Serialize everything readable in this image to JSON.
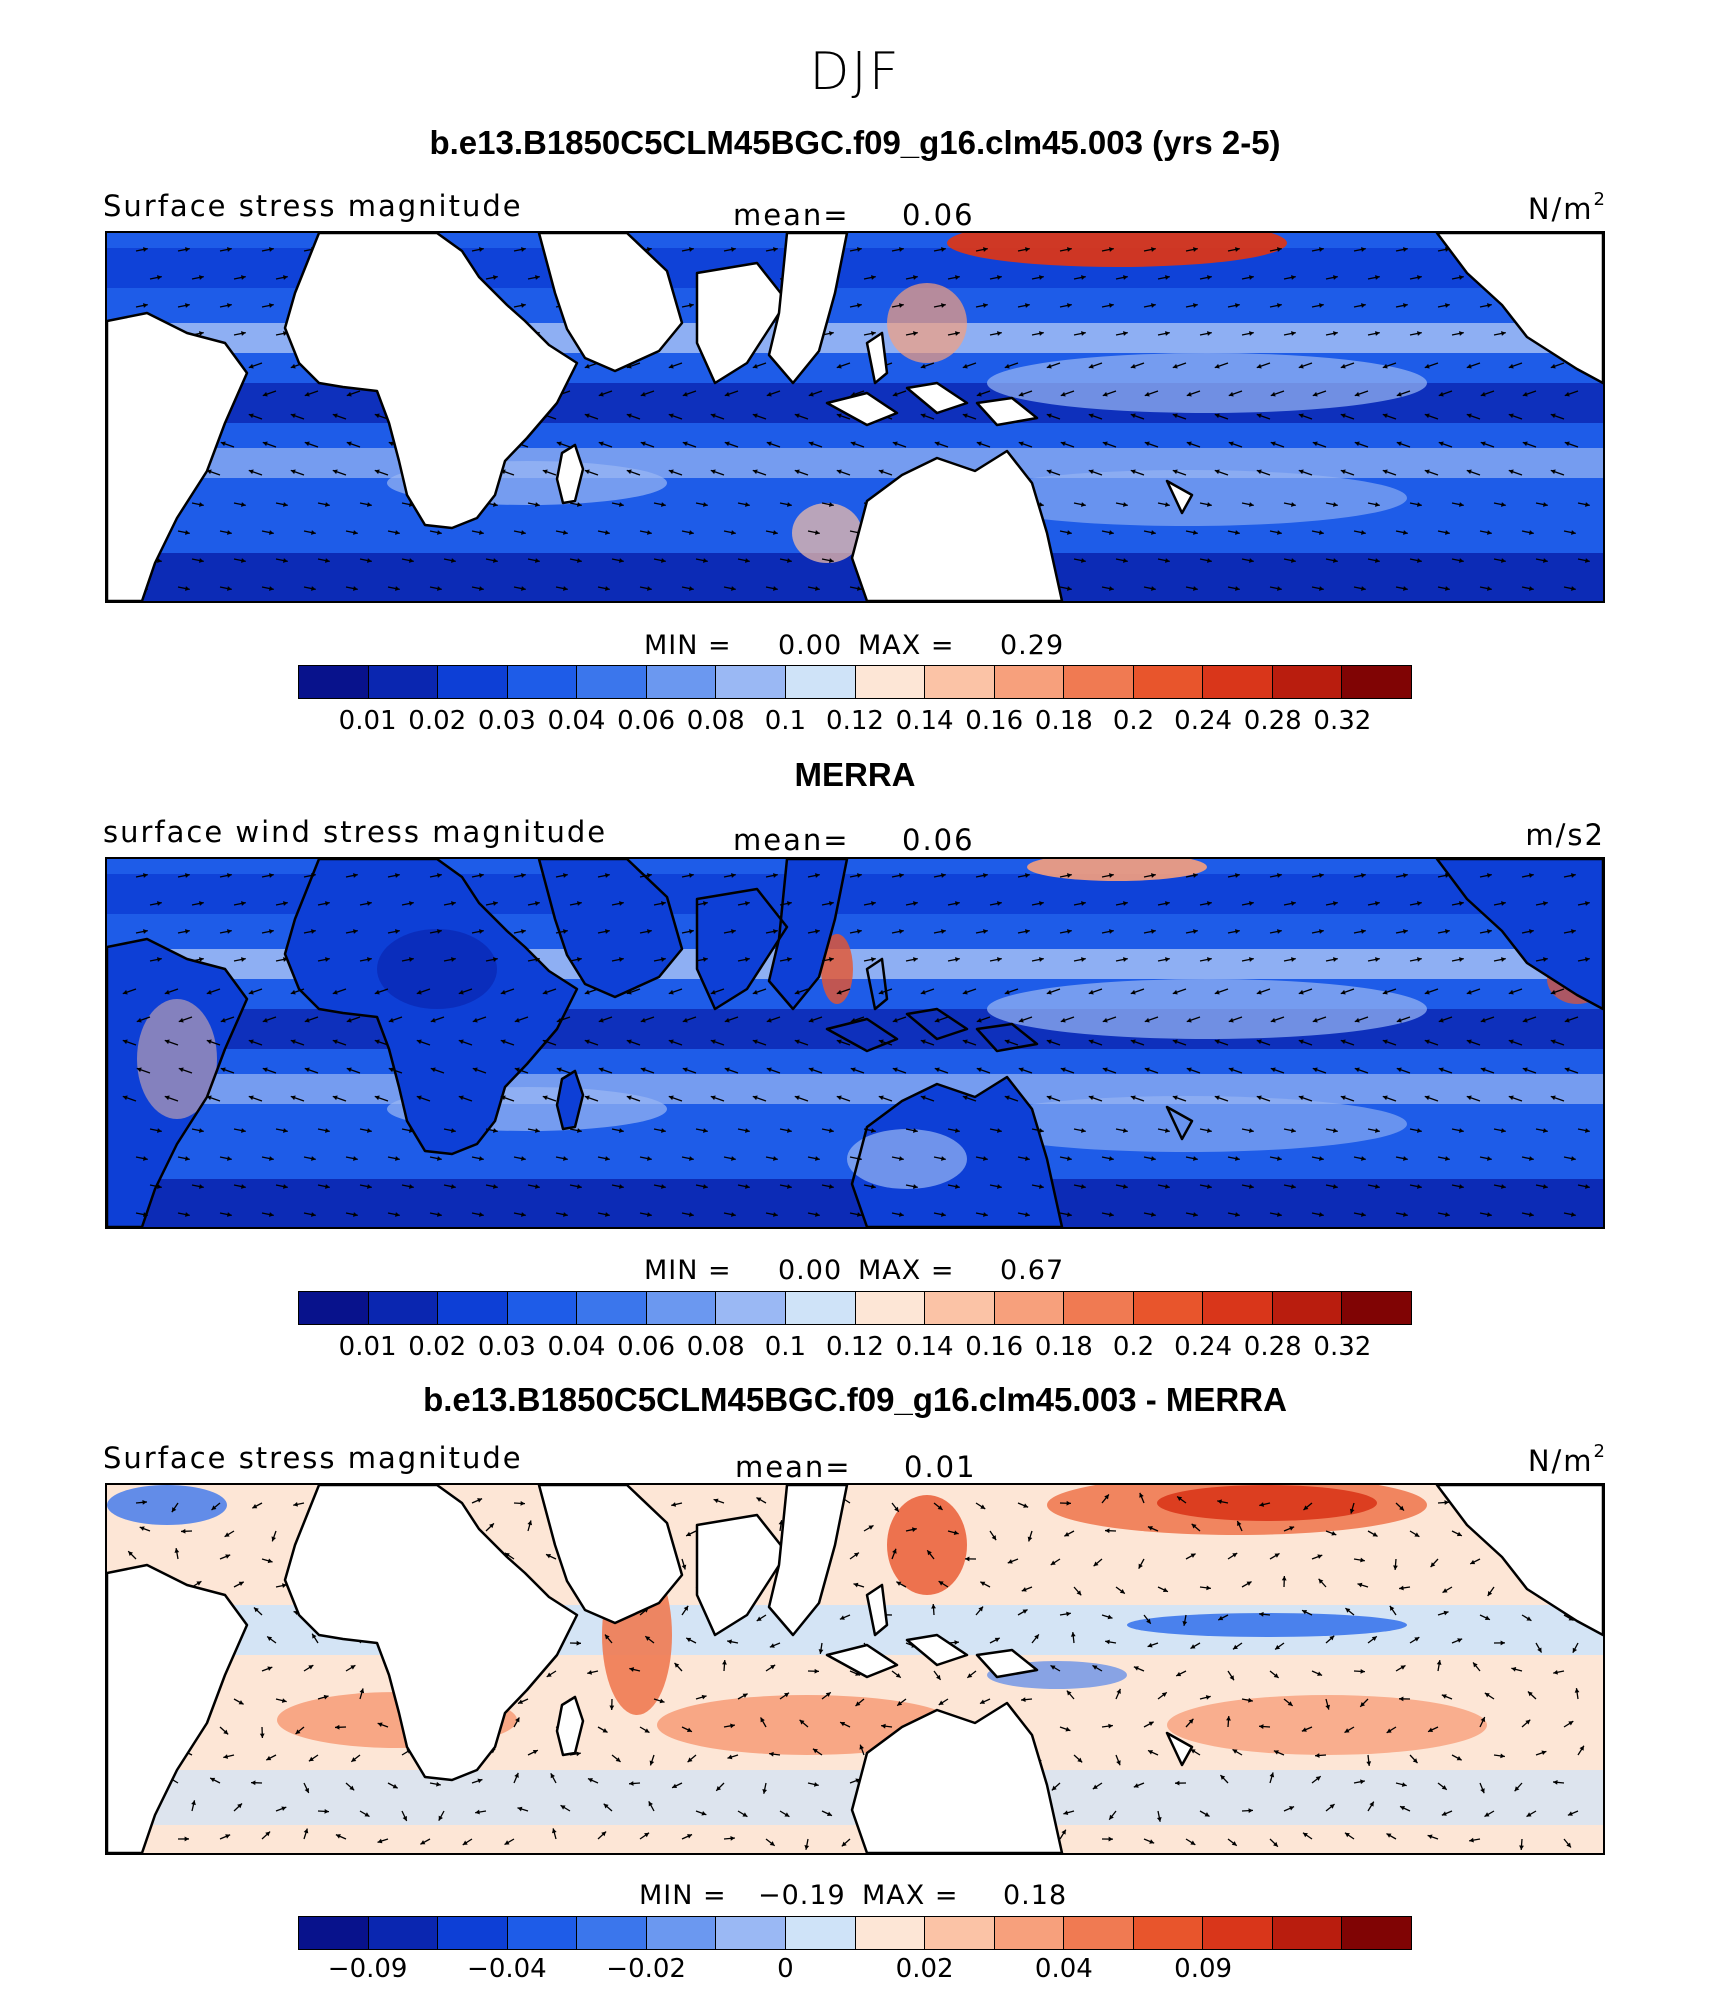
{
  "season": "DJF",
  "colorscale": [
    "#08128c",
    "#0a26b0",
    "#0d3fd6",
    "#1e5ce8",
    "#3b76ec",
    "#6b98f0",
    "#9ab8f4",
    "#cfe3f8",
    "#fde6d6",
    "#fbc3a6",
    "#f7a07c",
    "#f07a52",
    "#e8552c",
    "#d9361a",
    "#b91d0e",
    "#800404"
  ],
  "panels": [
    {
      "title": "b.e13.B1850C5CLM45BGC.f09_g16.clm45.003 (yrs 2-5)",
      "left_label": "Surface stress magnitude",
      "mean_label": "mean=",
      "mean_value": "0.06",
      "unit": "N/m",
      "unit_sup": "2",
      "min_label": "MIN =",
      "min_value": "0.00",
      "max_label": "MAX =",
      "max_value": "0.29",
      "ticks": [
        "0.01",
        "0.02",
        "0.03",
        "0.04",
        "0.06",
        "0.08",
        "0.1",
        "0.12",
        "0.14",
        "0.16",
        "0.18",
        "0.2",
        "0.24",
        "0.28",
        "0.32"
      ],
      "land_masked": true
    },
    {
      "title": "MERRA",
      "left_label": "surface wind stress magnitude",
      "mean_label": "mean=",
      "mean_value": "0.06",
      "unit": "m/s2",
      "unit_sup": "",
      "min_label": "MIN =",
      "min_value": "0.00",
      "max_label": "MAX =",
      "max_value": "0.67",
      "ticks": [
        "0.01",
        "0.02",
        "0.03",
        "0.04",
        "0.06",
        "0.08",
        "0.1",
        "0.12",
        "0.14",
        "0.16",
        "0.18",
        "0.2",
        "0.24",
        "0.28",
        "0.32"
      ],
      "land_masked": false
    },
    {
      "title": "b.e13.B1850C5CLM45BGC.f09_g16.clm45.003 - MERRA",
      "left_label": "Surface stress magnitude",
      "mean_label": "mean=",
      "mean_value": "0.01",
      "unit": "N/m",
      "unit_sup": "2",
      "min_label": "MIN =",
      "min_value": "−0.19",
      "max_label": "MAX =",
      "max_value": "0.18",
      "ticks": [
        "−0.09",
        "",
        "−0.04",
        "",
        "−0.02",
        "",
        "0",
        "",
        "0.02",
        "",
        "0.04",
        "",
        "0.09",
        "",
        ""
      ],
      "land_masked": true
    }
  ]
}
